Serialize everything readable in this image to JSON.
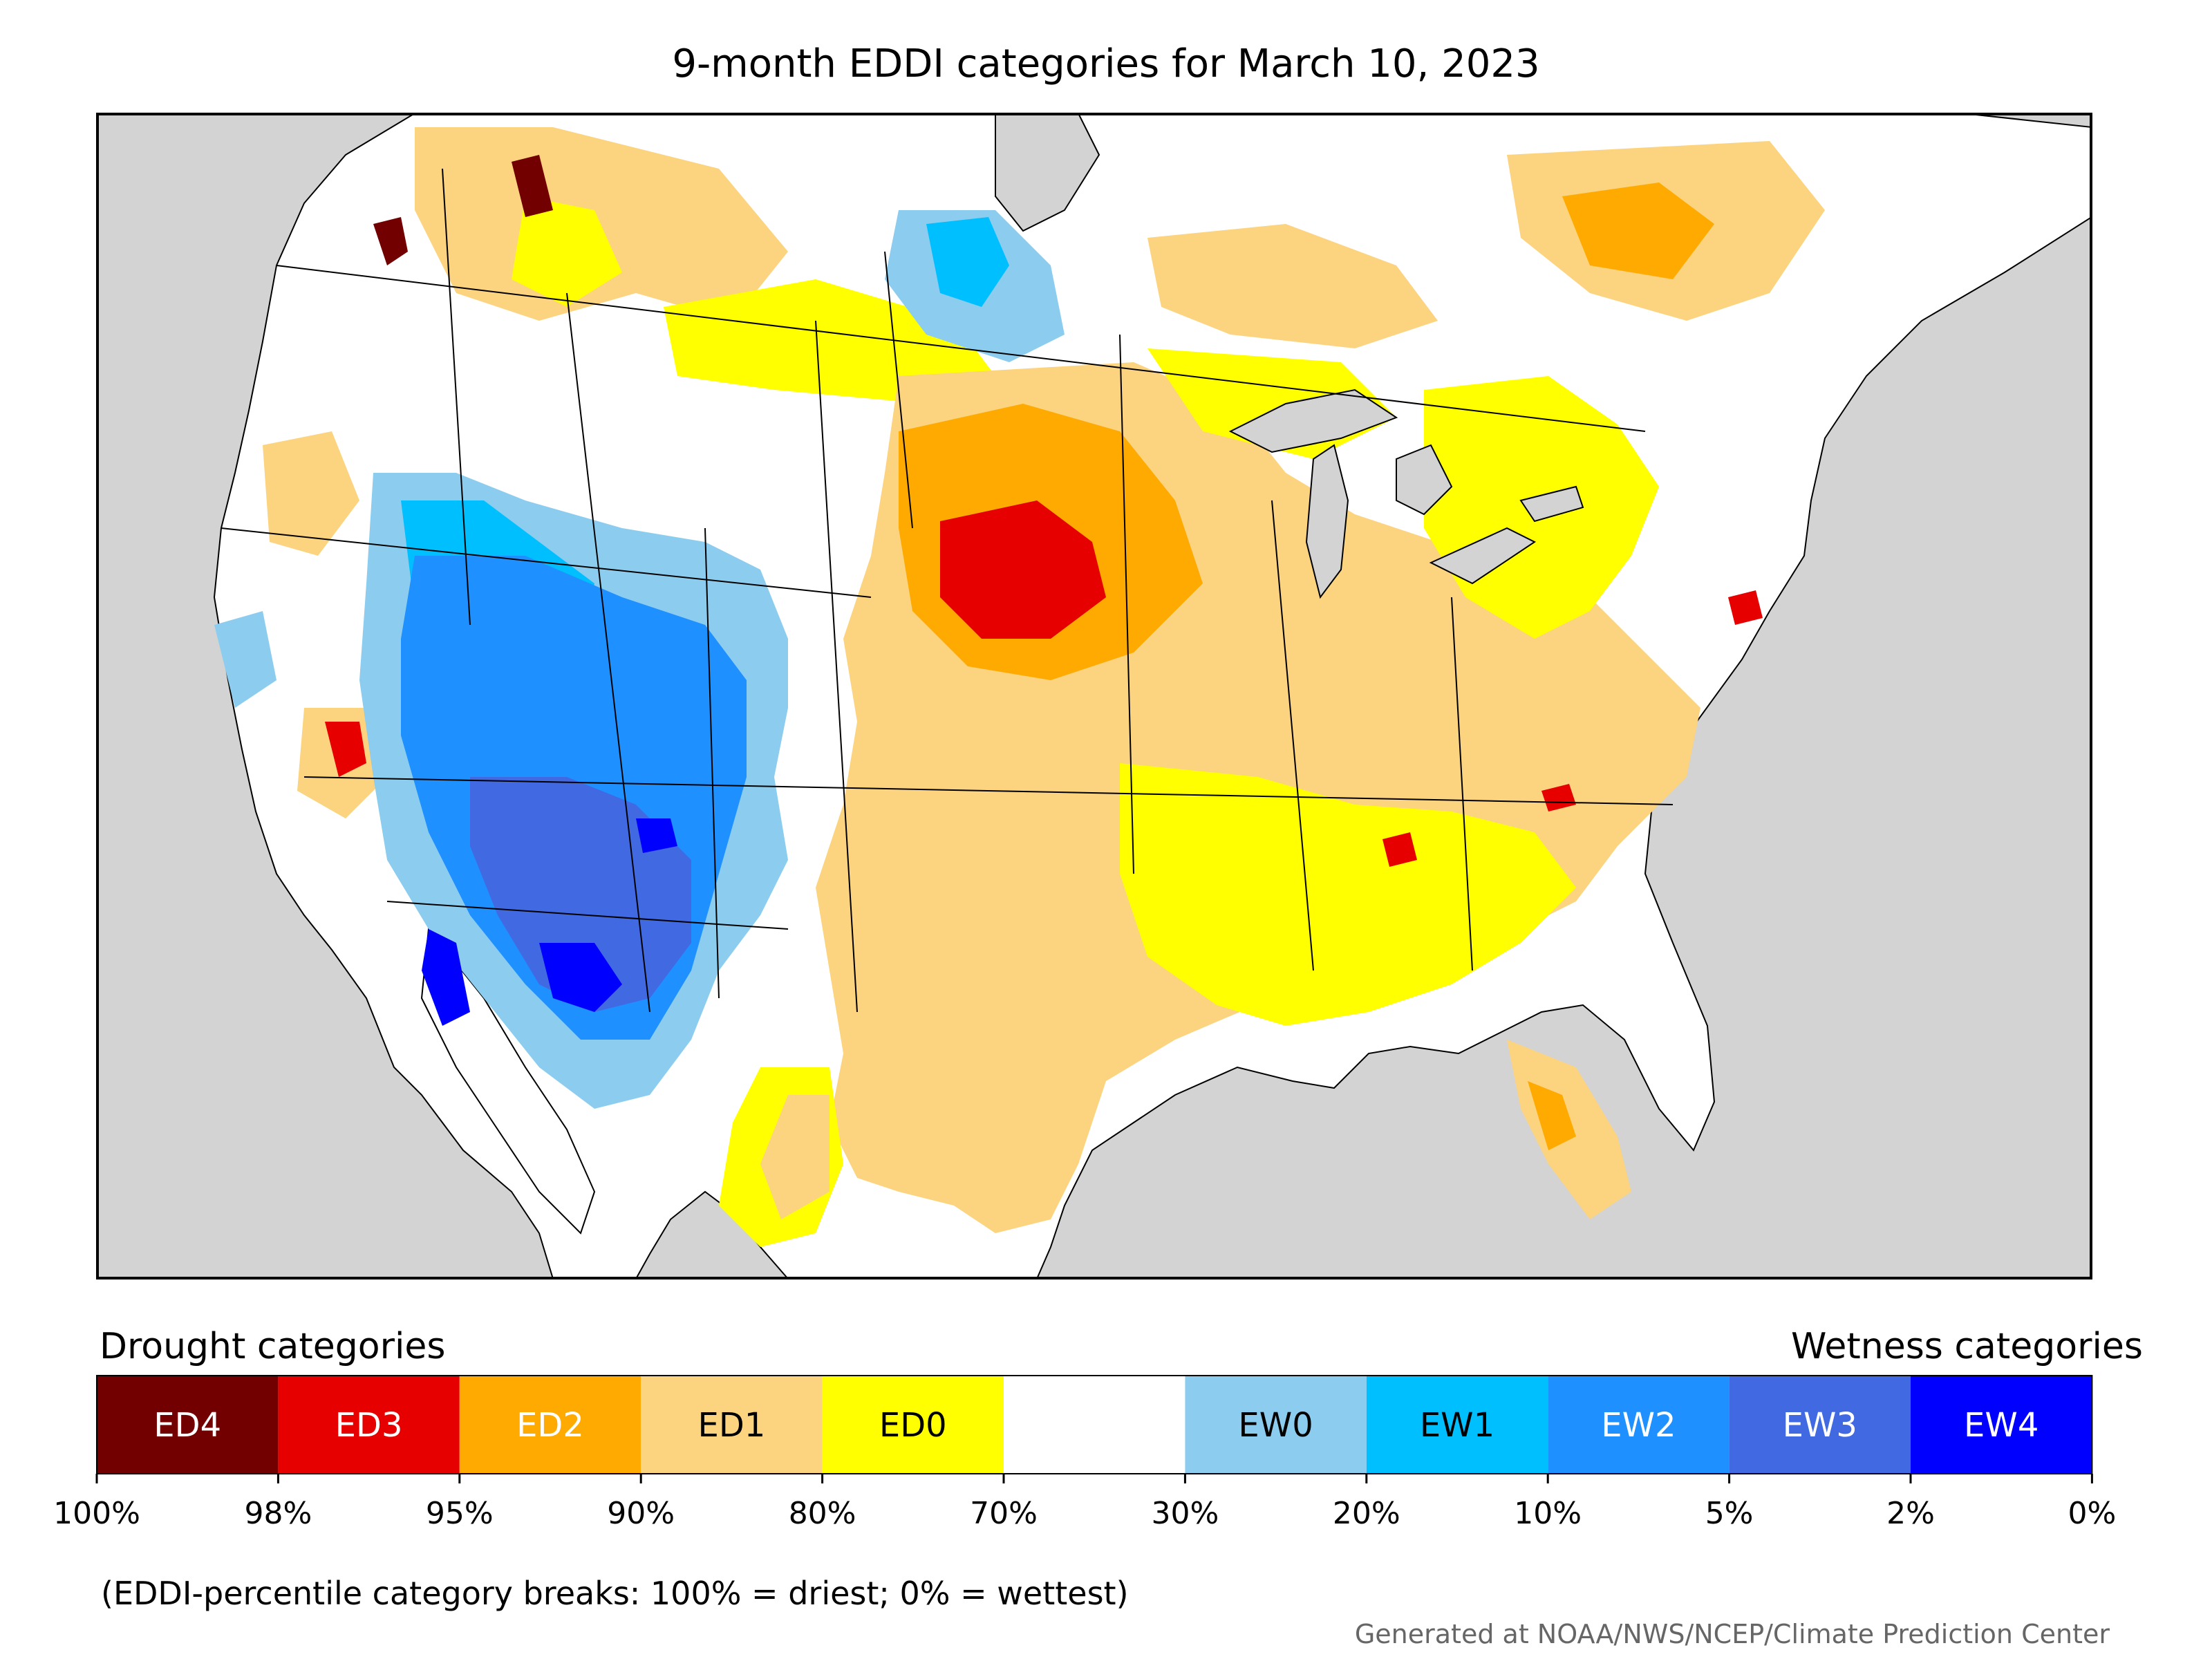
{
  "title": "9-month EDDI categories for March 10, 2023",
  "legend": {
    "drought_heading": "Drought categories",
    "wetness_heading": "Wetness categories",
    "categories": [
      {
        "label": "ED4",
        "color": "#730000",
        "text_color": "#ffffff"
      },
      {
        "label": "ED3",
        "color": "#e60000",
        "text_color": "#ffffff"
      },
      {
        "label": "ED2",
        "color": "#ffaa00",
        "text_color": "#ffffff"
      },
      {
        "label": "ED1",
        "color": "#fcd37f",
        "text_color": "#000000"
      },
      {
        "label": "ED0",
        "color": "#ffff00",
        "text_color": "#000000"
      },
      {
        "label": "",
        "color": "#ffffff",
        "text_color": "#000000"
      },
      {
        "label": "EW0",
        "color": "#8ccdef",
        "text_color": "#000000"
      },
      {
        "label": "EW1",
        "color": "#00bfff",
        "text_color": "#000000"
      },
      {
        "label": "EW2",
        "color": "#1e90ff",
        "text_color": "#ffffff"
      },
      {
        "label": "EW3",
        "color": "#4169e1",
        "text_color": "#ffffff"
      },
      {
        "label": "EW4",
        "color": "#0000ff",
        "text_color": "#ffffff"
      }
    ],
    "ticks": [
      "100%",
      "98%",
      "95%",
      "90%",
      "80%",
      "70%",
      "30%",
      "20%",
      "10%",
      "5%",
      "2%",
      "0%"
    ]
  },
  "note": "(EDDI-percentile category breaks: 100% = driest; 0% = wettest)",
  "credit": "Generated at NOAA/NWS/NCEP/Climate Prediction Center",
  "map_colors": {
    "ocean": "#d3d3d3",
    "land": "#ffffff",
    "lakes": "#d3d3d3"
  }
}
